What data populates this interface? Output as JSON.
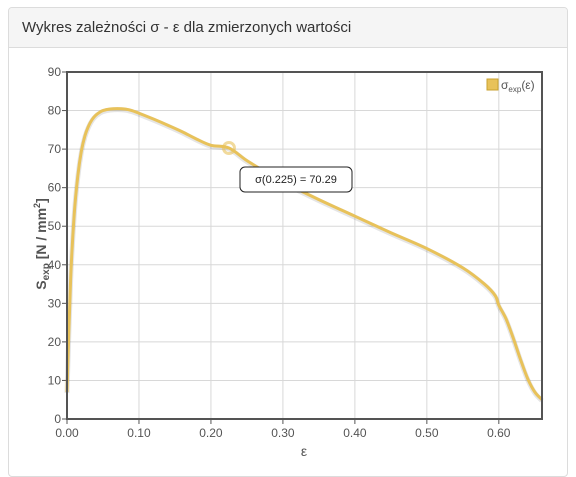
{
  "panel": {
    "title": "Wykres zależności σ - ε dla zmierzonych wartości"
  },
  "chart_data": {
    "type": "line",
    "xlabel": "ε",
    "ylabel": {
      "main": "S",
      "sub": "exp",
      "unit_open": " [N / mm",
      "unit_sup": "2",
      "unit_close": "]"
    },
    "xlim": [
      0,
      0.66
    ],
    "ylim": [
      0,
      90
    ],
    "x_ticks": [
      "0.00",
      "0.10",
      "0.20",
      "0.30",
      "0.40",
      "0.50",
      "0.60"
    ],
    "x_tick_values": [
      0,
      0.1,
      0.2,
      0.3,
      0.4,
      0.5,
      0.6
    ],
    "y_ticks": [
      "0",
      "10",
      "20",
      "30",
      "40",
      "50",
      "60",
      "70",
      "80",
      "90"
    ],
    "y_tick_values": [
      0,
      10,
      20,
      30,
      40,
      50,
      60,
      70,
      80,
      90
    ],
    "grid": true,
    "legend_position": "top-right",
    "series": [
      {
        "name": {
          "main": "σ",
          "sub": "exp",
          "tail": "(ε)"
        },
        "color": "#e8c25a",
        "x": [
          0,
          0.005,
          0.01,
          0.015,
          0.02,
          0.025,
          0.03,
          0.035,
          0.04,
          0.045,
          0.05,
          0.06,
          0.07,
          0.08,
          0.09,
          0.1,
          0.12,
          0.14,
          0.16,
          0.18,
          0.2,
          0.225,
          0.25,
          0.28,
          0.3,
          0.35,
          0.4,
          0.45,
          0.5,
          0.55,
          0.58,
          0.595,
          0.6,
          0.61,
          0.62,
          0.63,
          0.64,
          0.65,
          0.66
        ],
        "y": [
          7,
          36,
          53,
          63,
          69.5,
          73.5,
          76,
          77.7,
          78.8,
          79.5,
          80,
          80.4,
          80.5,
          80.4,
          80,
          79.3,
          77.8,
          76.2,
          74.5,
          72.6,
          71,
          70.29,
          67,
          63.6,
          61.5,
          56.9,
          52.6,
          48.3,
          44.2,
          39.2,
          35,
          32,
          29.5,
          26,
          21,
          15.5,
          10.5,
          7,
          5
        ]
      }
    ],
    "tooltip": {
      "text": "σ(0.225) = 70.29",
      "x": 0.225,
      "y": 70.29
    }
  }
}
